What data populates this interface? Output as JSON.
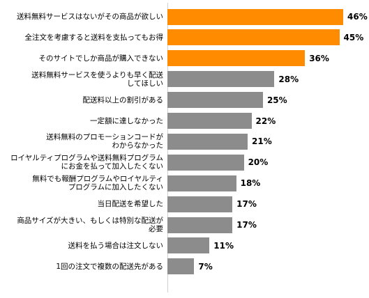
{
  "chart_data": {
    "type": "bar",
    "orientation": "horizontal",
    "title": "",
    "xlabel": "",
    "ylabel": "",
    "unit": "%",
    "xlim": [
      0,
      50
    ],
    "colors": {
      "highlight": "#ff8c00",
      "normal": "#8c8c8c"
    },
    "categories": [
      "送料無料サービスはないがその商品が欲しい",
      "全注文を考慮すると送料を支払ってもお得",
      "そのサイトでしか商品が購入できない",
      "送料無料サービスを使うよりも早く配送\nしてほしい",
      "配送料以上の割引がある",
      "一定額に達しなかった",
      "送料無料のプロモーションコードが\nわからなかった",
      "ロイヤルティプログラムや送料無料プログラム\nにお金を払って加入したくない",
      "無料でも報酬プログラムやロイヤルティ\nプログラムに加入したくない",
      "当日配送を希望した",
      "商品サイズが大きい、もしくは特別な配送が\n必要",
      "送料を払う場合は注文しない",
      "1回の注文で複数の配送先がある"
    ],
    "values": [
      46,
      45,
      36,
      28,
      25,
      22,
      21,
      20,
      18,
      17,
      17,
      11,
      7
    ],
    "value_labels": [
      "46%",
      "45%",
      "36%",
      "28%",
      "25%",
      "22%",
      "21%",
      "20%",
      "18%",
      "17%",
      "17%",
      "11%",
      "7%"
    ],
    "highlighted": [
      true,
      true,
      true,
      false,
      false,
      false,
      false,
      false,
      false,
      false,
      false,
      false,
      false
    ]
  }
}
